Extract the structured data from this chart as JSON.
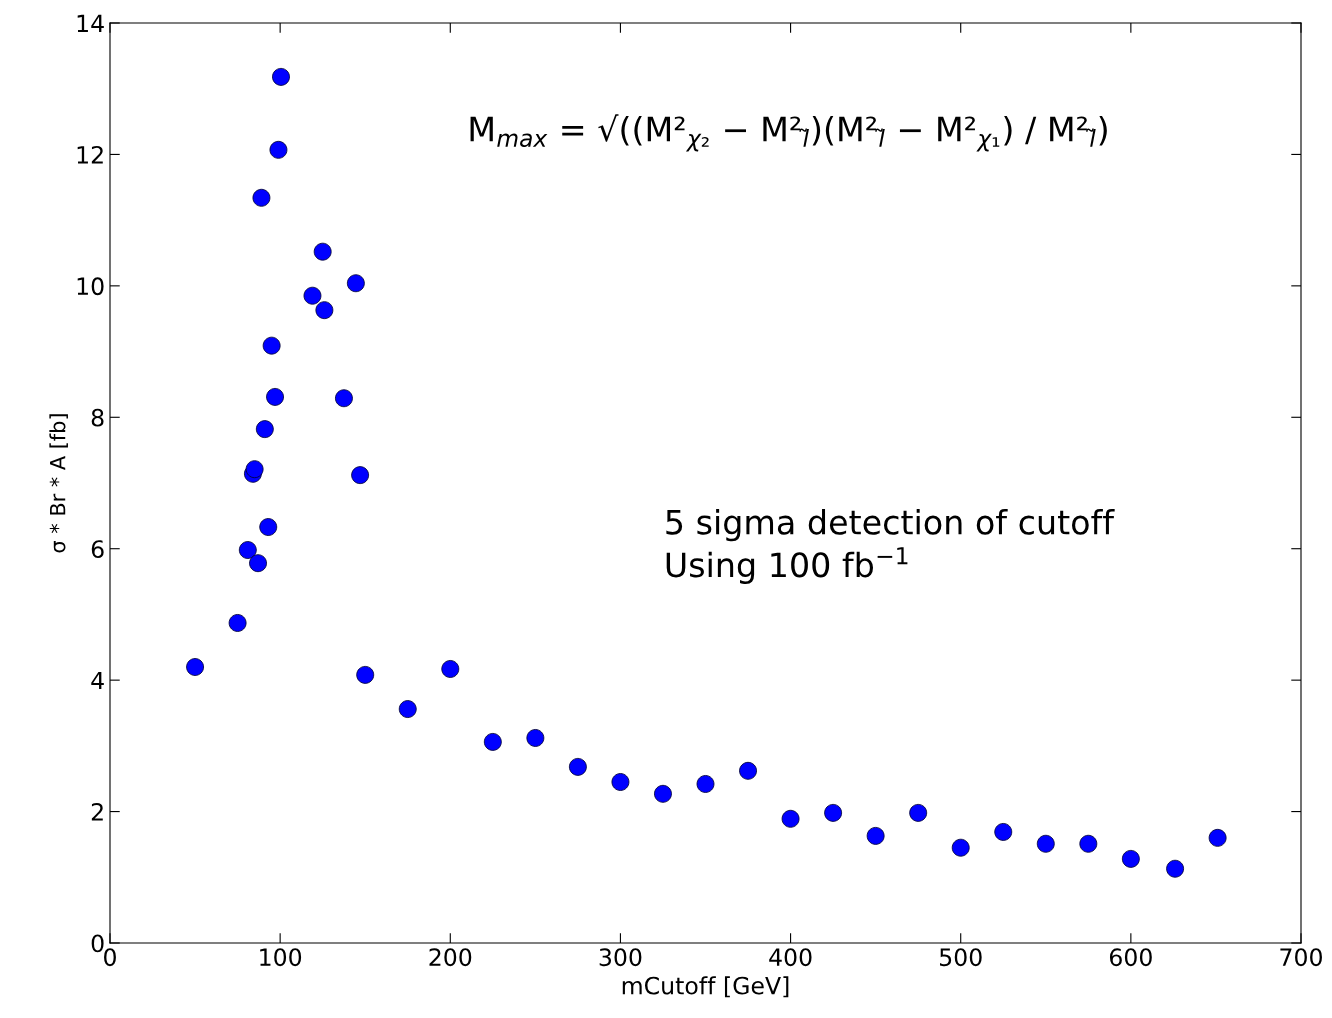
{
  "chart_data": {
    "type": "scatter",
    "xlabel": "mCutoff [GeV]",
    "ylabel": "σ * Br * A [fb]",
    "x": [
      50,
      75,
      81,
      84,
      85,
      87,
      89,
      91,
      93,
      95,
      97,
      99,
      100.5,
      119,
      125,
      126,
      137.5,
      144.5,
      147,
      150,
      175,
      200,
      225,
      250,
      275,
      300,
      325,
      350,
      375,
      400,
      425,
      450,
      475,
      500,
      525,
      550,
      575,
      600,
      626,
      651
    ],
    "series": [
      {
        "color": "#0000ff",
        "values": [
          4.2,
          4.87,
          5.98,
          7.14,
          7.21,
          5.78,
          11.34,
          7.82,
          6.33,
          9.09,
          8.31,
          12.07,
          13.18,
          9.85,
          10.52,
          9.63,
          8.29,
          10.04,
          7.12,
          4.08,
          3.56,
          4.17,
          3.06,
          3.12,
          2.68,
          2.45,
          2.27,
          2.42,
          2.62,
          1.89,
          1.98,
          1.63,
          1.98,
          1.45,
          1.69,
          1.51,
          1.51,
          1.28,
          1.13,
          1.6
        ]
      }
    ],
    "xlim": [
      0,
      700
    ],
    "xticks": [
      0,
      100,
      200,
      300,
      400,
      500,
      600,
      700
    ],
    "ylim": [
      0,
      14
    ],
    "yticks": [
      0,
      2,
      4,
      6,
      8,
      10,
      12,
      14
    ],
    "marker": "circle",
    "grid": false,
    "annotations": [
      "M$_{max}$ = √((M²$_{χ₂}$ − M²$_{l̃}$)(M²$_{l̃}$ − M²$_{χ₁}$) / M²$_{l̃}$)",
      "5 sigma detection of cutoff\nUsing 100 fb$^{−1}$"
    ]
  }
}
